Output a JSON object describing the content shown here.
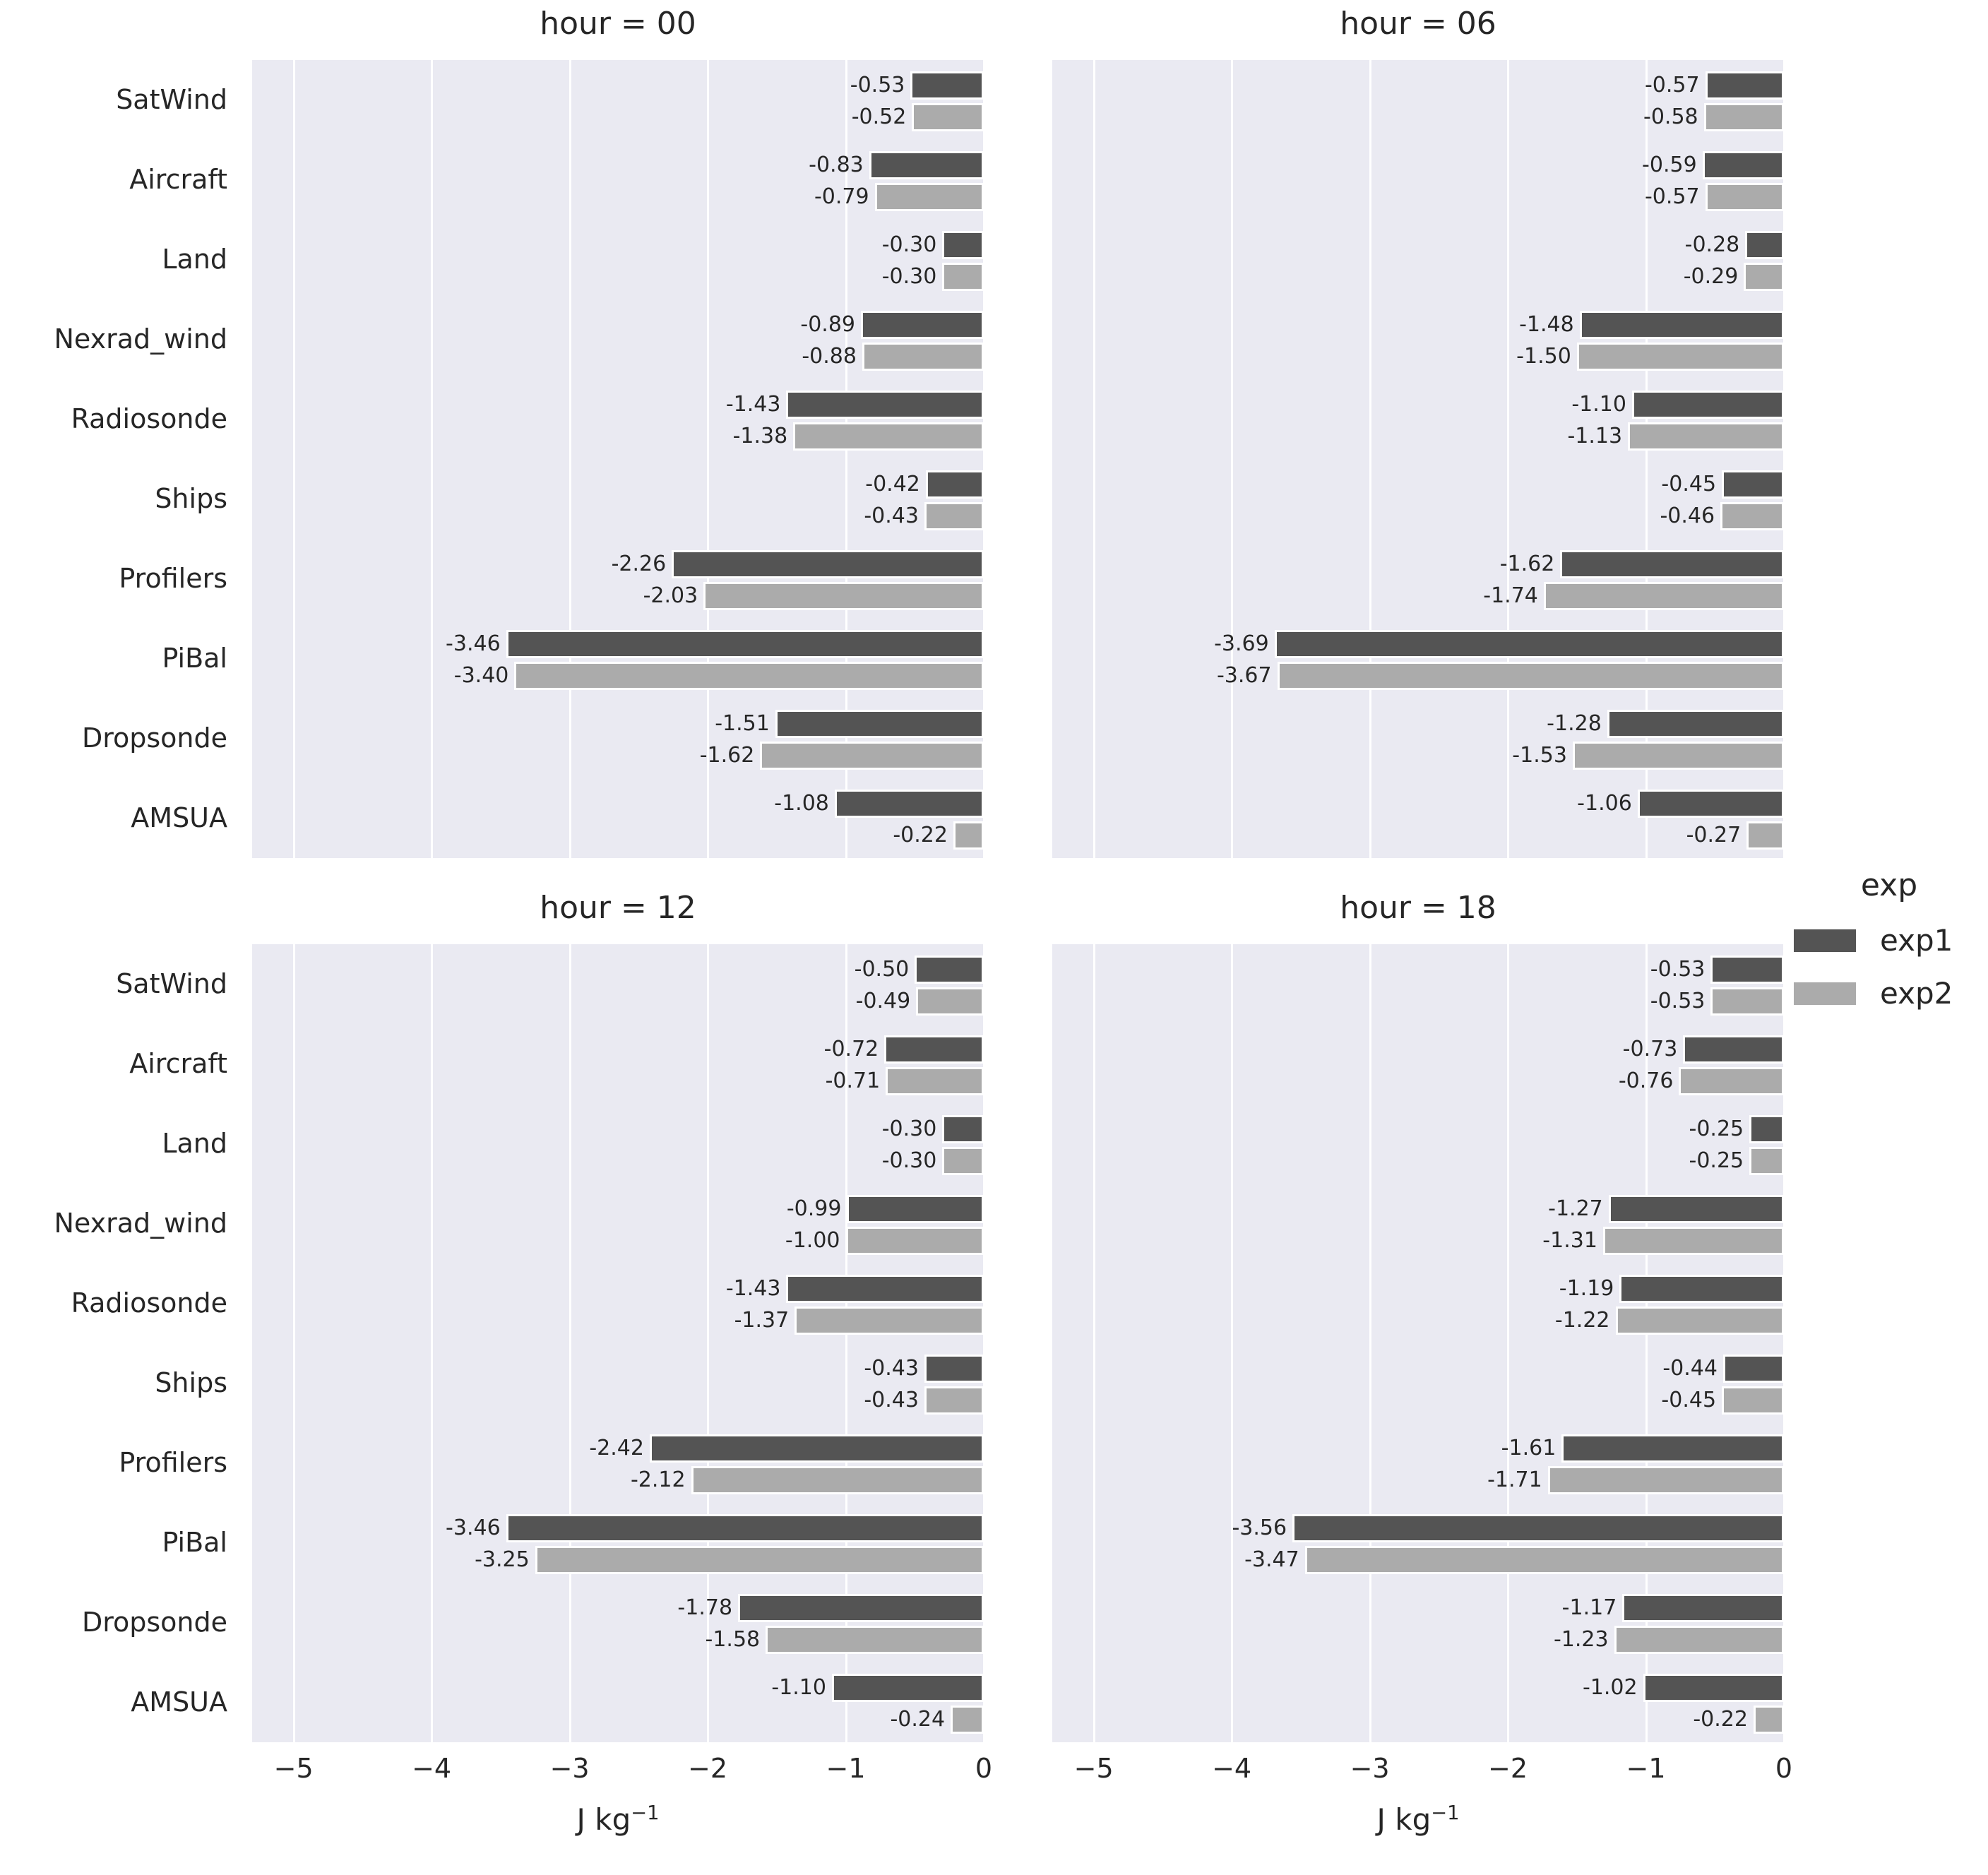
{
  "axes": {
    "xlabel_base": "J kg",
    "xlabel_exp": "−1",
    "xlim": [
      -5.3,
      0
    ],
    "xticks": [
      -5,
      -4,
      -3,
      -2,
      -1,
      0
    ],
    "xticklabels": [
      "−5",
      "−4",
      "−3",
      "−2",
      "−1",
      "0"
    ]
  },
  "legend": {
    "title": "exp",
    "entries": [
      {
        "label": "exp1",
        "color": "#545454"
      },
      {
        "label": "exp2",
        "color": "#ababab"
      }
    ]
  },
  "colors": {
    "panel_background": "#eaeaf2",
    "gridline": "#ffffff",
    "text": "#262626",
    "exp1_bar": "#545454",
    "exp2_bar": "#ababab"
  },
  "chart_data": [
    {
      "type": "bar",
      "orientation": "horizontal",
      "title": "hour = 00",
      "xlabel": "J kg⁻¹",
      "xlim": [
        -5.3,
        0
      ],
      "grid": true,
      "legend_position": "right-outside",
      "categories": [
        "SatWind",
        "Aircraft",
        "Land",
        "Nexrad_wind",
        "Radiosonde",
        "Ships",
        "Profilers",
        "PiBal",
        "Dropsonde",
        "AMSUA"
      ],
      "series": [
        {
          "name": "exp1",
          "values": [
            -0.53,
            -0.83,
            -0.3,
            -0.89,
            -1.43,
            -0.42,
            -2.26,
            -3.46,
            -1.51,
            -1.08
          ]
        },
        {
          "name": "exp2",
          "values": [
            -0.52,
            -0.79,
            -0.3,
            -0.88,
            -1.38,
            -0.43,
            -2.03,
            -3.4,
            -1.62,
            -0.22
          ]
        }
      ]
    },
    {
      "type": "bar",
      "orientation": "horizontal",
      "title": "hour = 06",
      "xlabel": "J kg⁻¹",
      "xlim": [
        -5.3,
        0
      ],
      "grid": true,
      "categories": [
        "SatWind",
        "Aircraft",
        "Land",
        "Nexrad_wind",
        "Radiosonde",
        "Ships",
        "Profilers",
        "PiBal",
        "Dropsonde",
        "AMSUA"
      ],
      "series": [
        {
          "name": "exp1",
          "values": [
            -0.57,
            -0.59,
            -0.28,
            -1.48,
            -1.1,
            -0.45,
            -1.62,
            -3.69,
            -1.28,
            -1.06
          ]
        },
        {
          "name": "exp2",
          "values": [
            -0.58,
            -0.57,
            -0.29,
            -1.5,
            -1.13,
            -0.46,
            -1.74,
            -3.67,
            -1.53,
            -0.27
          ]
        }
      ]
    },
    {
      "type": "bar",
      "orientation": "horizontal",
      "title": "hour = 12",
      "xlabel": "J kg⁻¹",
      "xlim": [
        -5.3,
        0
      ],
      "grid": true,
      "categories": [
        "SatWind",
        "Aircraft",
        "Land",
        "Nexrad_wind",
        "Radiosonde",
        "Ships",
        "Profilers",
        "PiBal",
        "Dropsonde",
        "AMSUA"
      ],
      "series": [
        {
          "name": "exp1",
          "values": [
            -0.5,
            -0.72,
            -0.3,
            -0.99,
            -1.43,
            -0.43,
            -2.42,
            -3.46,
            -1.78,
            -1.1
          ]
        },
        {
          "name": "exp2",
          "values": [
            -0.49,
            -0.71,
            -0.3,
            -1.0,
            -1.37,
            -0.43,
            -2.12,
            -3.25,
            -1.58,
            -0.24
          ]
        }
      ]
    },
    {
      "type": "bar",
      "orientation": "horizontal",
      "title": "hour = 18",
      "xlabel": "J kg⁻¹",
      "xlim": [
        -5.3,
        0
      ],
      "grid": true,
      "categories": [
        "SatWind",
        "Aircraft",
        "Land",
        "Nexrad_wind",
        "Radiosonde",
        "Ships",
        "Profilers",
        "PiBal",
        "Dropsonde",
        "AMSUA"
      ],
      "series": [
        {
          "name": "exp1",
          "values": [
            -0.53,
            -0.73,
            -0.25,
            -1.27,
            -1.19,
            -0.44,
            -1.61,
            -3.56,
            -1.17,
            -1.02
          ]
        },
        {
          "name": "exp2",
          "values": [
            -0.53,
            -0.76,
            -0.25,
            -1.31,
            -1.22,
            -0.45,
            -1.71,
            -3.47,
            -1.23,
            -0.22
          ]
        }
      ]
    }
  ]
}
